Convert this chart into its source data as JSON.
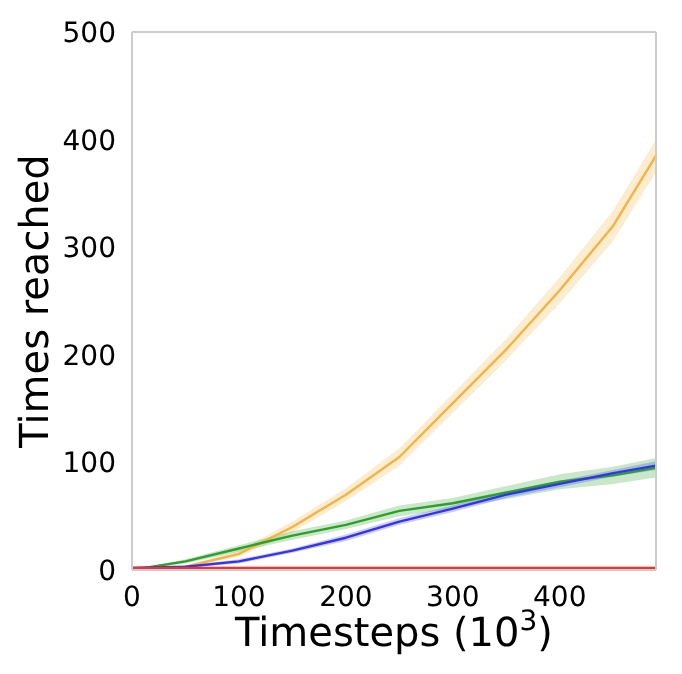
{
  "chart_data": {
    "type": "line",
    "xlabel": "Timesteps (10$^{3}$)",
    "ylabel": "Times reached",
    "x": [
      0,
      50,
      100,
      150,
      200,
      250,
      300,
      350,
      400,
      450,
      490
    ],
    "xlim": [
      0,
      490
    ],
    "xticks": [
      0,
      100,
      200,
      300,
      400
    ],
    "ylim": [
      0,
      500
    ],
    "yticks": [
      0,
      100,
      200,
      300,
      400,
      500
    ],
    "grid": false,
    "legend": false,
    "marker": "none",
    "line_style": "solid",
    "series": [
      {
        "color": "#f5b342",
        "values": [
          0,
          3,
          15,
          40,
          70,
          105,
          155,
          205,
          260,
          320,
          385
        ],
        "lower": [
          0,
          2,
          12,
          35,
          64,
          97,
          146,
          195,
          248,
          306,
          370
        ],
        "upper": [
          0,
          4,
          18,
          45,
          76,
          113,
          164,
          215,
          272,
          334,
          400
        ]
      },
      {
        "color": "#2ca02c",
        "values": [
          0,
          8,
          20,
          32,
          42,
          55,
          62,
          72,
          82,
          88,
          95
        ],
        "lower": [
          0,
          6,
          17,
          28,
          38,
          50,
          57,
          66,
          75,
          80,
          86
        ],
        "upper": [
          0,
          10,
          23,
          36,
          46,
          60,
          67,
          78,
          89,
          96,
          104
        ]
      },
      {
        "color": "#3333ee",
        "values": [
          2,
          3,
          8,
          18,
          30,
          45,
          57,
          70,
          80,
          90,
          97
        ],
        "lower": [
          1,
          2,
          6,
          16,
          27,
          42,
          54,
          67,
          77,
          87,
          93
        ],
        "upper": [
          3,
          4,
          10,
          20,
          33,
          48,
          60,
          73,
          83,
          93,
          101
        ]
      },
      {
        "color": "#ee3333",
        "values": [
          2,
          2,
          2,
          2,
          2,
          2,
          2,
          2,
          2,
          2,
          2
        ],
        "lower": [
          1,
          1,
          1,
          1,
          1,
          1,
          1,
          1,
          1,
          1,
          1
        ],
        "upper": [
          3,
          3,
          3,
          3,
          3,
          3,
          3,
          3,
          3,
          3,
          3
        ]
      }
    ]
  }
}
